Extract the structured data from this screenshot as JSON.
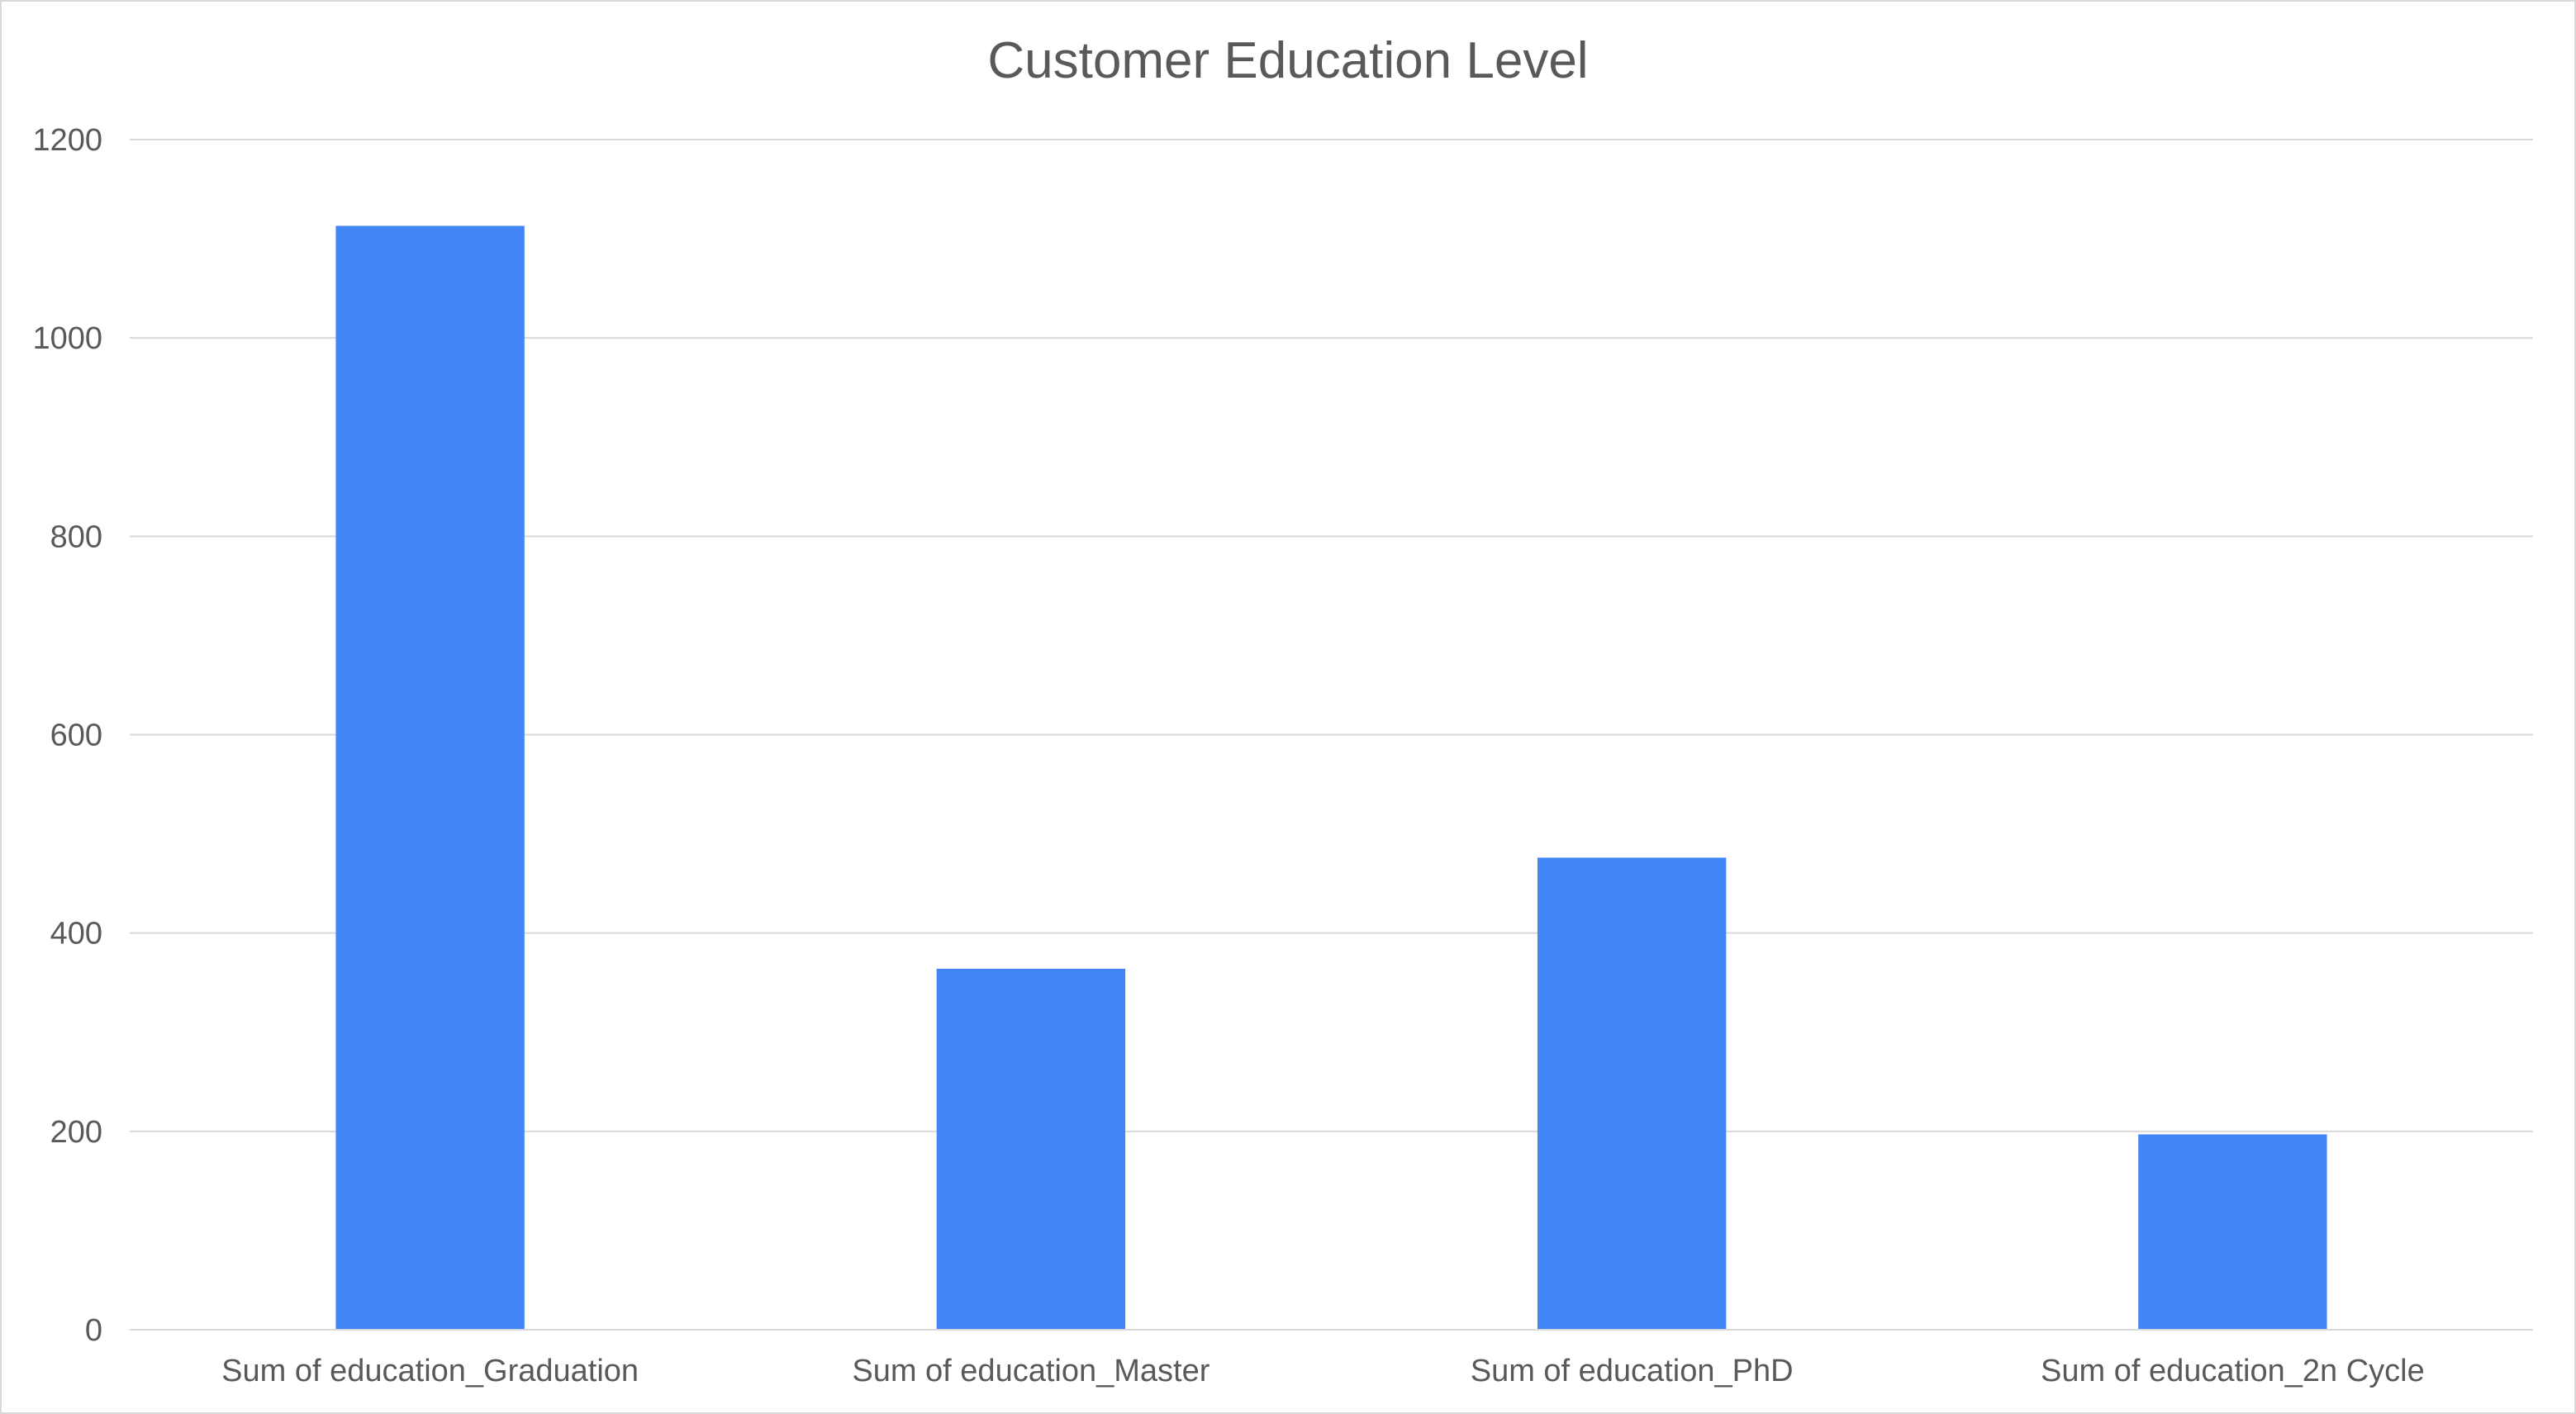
{
  "chart_data": {
    "type": "bar",
    "title": "Customer Education Level",
    "xlabel": "",
    "ylabel": "",
    "categories": [
      "Sum of education_Graduation",
      "Sum of education_Master",
      "Sum of education_PhD",
      "Sum of education_2n Cycle"
    ],
    "values": [
      1113,
      364,
      476,
      197
    ],
    "ylim": [
      0,
      1200
    ],
    "yticks": [
      "0",
      "200",
      "400",
      "600",
      "800",
      "1000",
      "1200"
    ],
    "grid": true,
    "legend": "none",
    "bar_color": "#4285F4"
  }
}
